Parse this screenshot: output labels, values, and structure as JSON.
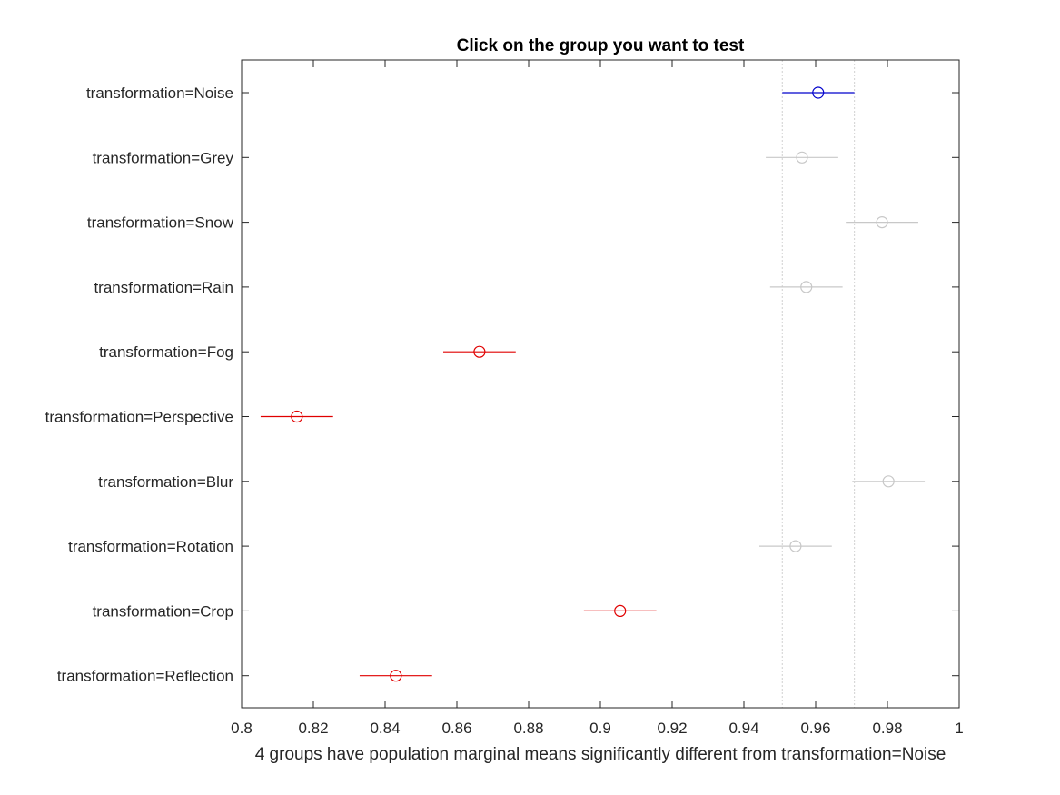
{
  "chart_data": {
    "type": "scatter",
    "title": "Click on the group you want to test",
    "xlabel": "4 groups have population marginal means significantly different from transformation=Noise",
    "ylabel": "",
    "xlim": [
      0.8,
      1.0
    ],
    "xticks": [
      0.8,
      0.82,
      0.84,
      0.86,
      0.88,
      0.9,
      0.92,
      0.94,
      0.96,
      0.98,
      1.0
    ],
    "xtick_labels": [
      "0.8",
      "0.82",
      "0.84",
      "0.86",
      "0.88",
      "0.9",
      "0.92",
      "0.94",
      "0.96",
      "0.98",
      "1"
    ],
    "reference_interval": [
      0.9507,
      0.9708
    ],
    "grid": false,
    "legend": "none",
    "colors": {
      "selected": "#0000cc",
      "significant": "#e00000",
      "not_significant": "#c8c8c8"
    },
    "groups": [
      {
        "label": "transformation=Noise",
        "mean": 0.9607,
        "lower": 0.9507,
        "upper": 0.9708,
        "status": "selected"
      },
      {
        "label": "transformation=Grey",
        "mean": 0.9562,
        "lower": 0.9461,
        "upper": 0.9663,
        "status": "not_significant"
      },
      {
        "label": "transformation=Snow",
        "mean": 0.9785,
        "lower": 0.9684,
        "upper": 0.9886,
        "status": "not_significant"
      },
      {
        "label": "transformation=Rain",
        "mean": 0.9574,
        "lower": 0.9473,
        "upper": 0.9675,
        "status": "not_significant"
      },
      {
        "label": "transformation=Fog",
        "mean": 0.8663,
        "lower": 0.8562,
        "upper": 0.8764,
        "status": "significant"
      },
      {
        "label": "transformation=Perspective",
        "mean": 0.8154,
        "lower": 0.8053,
        "upper": 0.8255,
        "status": "significant"
      },
      {
        "label": "transformation=Blur",
        "mean": 0.9803,
        "lower": 0.9702,
        "upper": 0.9904,
        "status": "not_significant"
      },
      {
        "label": "transformation=Rotation",
        "mean": 0.9544,
        "lower": 0.9443,
        "upper": 0.9645,
        "status": "not_significant"
      },
      {
        "label": "transformation=Crop",
        "mean": 0.9055,
        "lower": 0.8954,
        "upper": 0.9156,
        "status": "significant"
      },
      {
        "label": "transformation=Reflection",
        "mean": 0.843,
        "lower": 0.8329,
        "upper": 0.8531,
        "status": "significant"
      }
    ]
  }
}
